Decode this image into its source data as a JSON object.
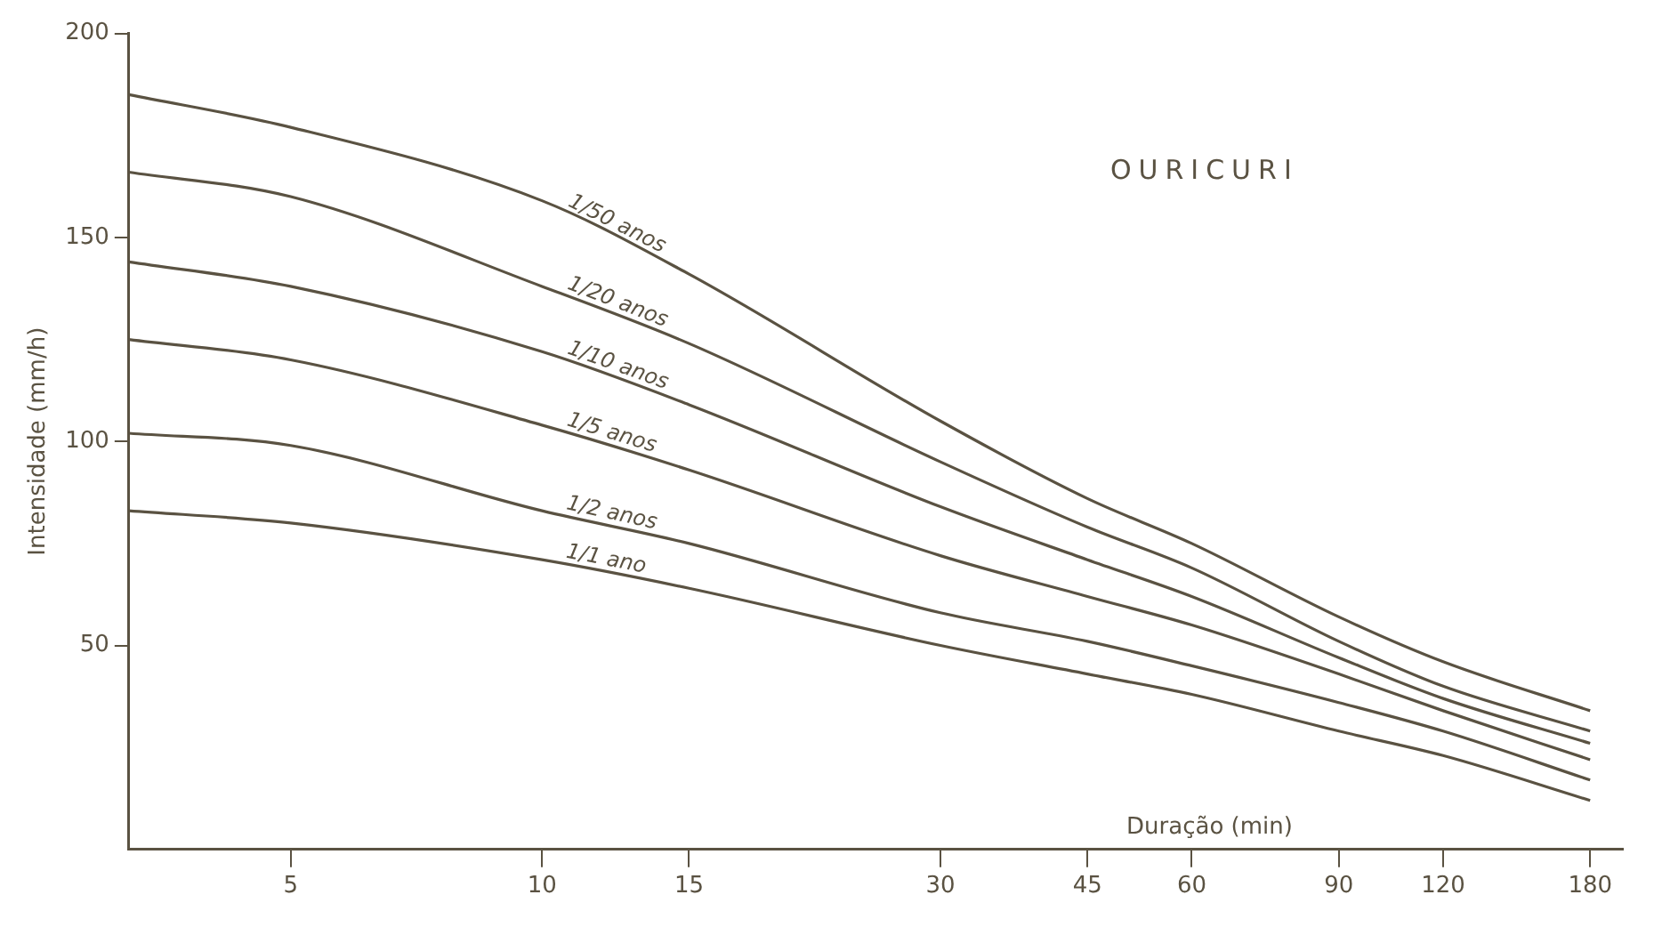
{
  "chart_data": {
    "type": "line",
    "title": "OURICURI",
    "xlabel": "Duração (min)",
    "ylabel": "Intensidade (mm/h)",
    "log": "x",
    "xlim": [
      3.2,
      197
    ],
    "xticks": [
      5,
      10,
      15,
      30,
      45,
      60,
      90,
      120,
      180
    ],
    "ylim": [
      0,
      200
    ],
    "yticks": [
      50,
      100,
      150,
      200
    ],
    "grid": false,
    "legend": false,
    "marker": "none",
    "line_style": "solid",
    "x": [
      3.2,
      5,
      10,
      15,
      30,
      45,
      60,
      90,
      120,
      180
    ],
    "series": [
      {
        "name": "1/50 anos",
        "color": "#5a5242",
        "values": [
          185,
          177,
          159,
          141,
          105,
          86,
          75,
          57,
          46,
          34
        ]
      },
      {
        "name": "1/20 anos",
        "color": "#5a5242",
        "values": [
          166,
          160,
          138,
          124,
          95,
          79,
          69,
          51,
          40,
          29
        ]
      },
      {
        "name": "1/10 anos",
        "color": "#5a5242",
        "values": [
          144,
          138,
          122,
          109,
          84,
          71,
          62,
          47,
          37,
          26
        ]
      },
      {
        "name": "1/5 anos",
        "color": "#5a5242",
        "values": [
          125,
          120,
          104,
          93,
          72,
          62,
          55,
          43,
          34,
          22
        ]
      },
      {
        "name": "1/2 anos",
        "color": "#5a5242",
        "values": [
          102,
          99,
          83,
          75,
          58,
          51,
          45,
          36,
          29,
          17
        ]
      },
      {
        "name": "1/1 ano",
        "color": "#5a5242",
        "values": [
          83,
          80,
          71,
          64,
          50,
          43,
          38,
          29,
          23,
          12
        ]
      }
    ]
  }
}
